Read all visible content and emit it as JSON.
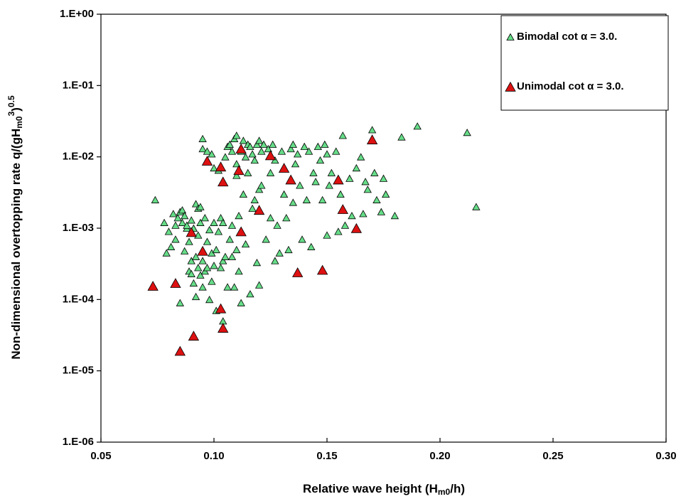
{
  "chart_data": {
    "type": "scatter",
    "xlabel": [
      "Relative wave height (H",
      "m0",
      "/h)"
    ],
    "ylabel": [
      "Non-dimensional  overtopping rate  q/(gH",
      "m0",
      "3",
      ")",
      "0.5"
    ],
    "xlim": [
      0.05,
      0.3
    ],
    "xticks": [
      0.05,
      {
        "value": 0.1,
        "label": "0.10"
      },
      0.15,
      {
        "value": 0.2,
        "label": "0.20"
      },
      0.25,
      {
        "value": 0.3,
        "label": "0.30"
      }
    ],
    "ylim": [
      1e-06,
      1
    ],
    "ylog": true,
    "yticks": [
      {
        "value": 1e-06,
        "label": "1.E-06"
      },
      {
        "value": 1e-05,
        "label": "1.E-05"
      },
      {
        "value": 0.0001,
        "label": "1.E-04"
      },
      {
        "value": 0.001,
        "label": "1.E-03"
      },
      {
        "value": 0.01,
        "label": "1.E-02"
      },
      {
        "value": 0.1,
        "label": "1.E-01"
      },
      {
        "value": 1,
        "label": "1.E+00"
      }
    ],
    "legend": "top-right",
    "series": [
      {
        "name": "Bimodal cot α = 3.0.",
        "color": "#66dd88",
        "size": 10,
        "x": [
          0.074,
          0.078,
          0.079,
          0.08,
          0.081,
          0.082,
          0.083,
          0.083,
          0.084,
          0.085,
          0.085,
          0.086,
          0.086,
          0.087,
          0.087,
          0.088,
          0.088,
          0.089,
          0.089,
          0.09,
          0.09,
          0.09,
          0.091,
          0.091,
          0.092,
          0.092,
          0.092,
          0.093,
          0.093,
          0.093,
          0.094,
          0.094,
          0.094,
          0.095,
          0.095,
          0.095,
          0.095,
          0.096,
          0.096,
          0.097,
          0.097,
          0.097,
          0.098,
          0.098,
          0.099,
          0.099,
          0.099,
          0.1,
          0.1,
          0.1,
          0.101,
          0.101,
          0.102,
          0.102,
          0.103,
          0.103,
          0.104,
          0.104,
          0.104,
          0.105,
          0.105,
          0.106,
          0.106,
          0.107,
          0.107,
          0.108,
          0.108,
          0.108,
          0.109,
          0.109,
          0.11,
          0.11,
          0.11,
          0.11,
          0.111,
          0.111,
          0.112,
          0.112,
          0.113,
          0.113,
          0.114,
          0.114,
          0.115,
          0.115,
          0.116,
          0.116,
          0.117,
          0.117,
          0.118,
          0.118,
          0.119,
          0.119,
          0.12,
          0.12,
          0.12,
          0.121,
          0.121,
          0.122,
          0.123,
          0.124,
          0.125,
          0.125,
          0.126,
          0.127,
          0.127,
          0.128,
          0.129,
          0.13,
          0.131,
          0.132,
          0.133,
          0.134,
          0.135,
          0.135,
          0.136,
          0.137,
          0.138,
          0.139,
          0.14,
          0.141,
          0.142,
          0.143,
          0.144,
          0.145,
          0.146,
          0.147,
          0.148,
          0.149,
          0.15,
          0.15,
          0.151,
          0.152,
          0.154,
          0.155,
          0.156,
          0.157,
          0.158,
          0.16,
          0.161,
          0.163,
          0.165,
          0.166,
          0.167,
          0.168,
          0.17,
          0.171,
          0.172,
          0.174,
          0.175,
          0.176,
          0.18,
          0.183,
          0.19,
          0.212,
          0.216
        ],
        "values": [
          0.0025,
          0.0012,
          0.00045,
          0.0009,
          0.00055,
          0.0016,
          0.0011,
          0.0007,
          0.0014,
          0.0017,
          9e-05,
          0.0018,
          0.0012,
          0.0015,
          0.00048,
          0.001,
          0.0011,
          0.00025,
          0.00065,
          0.00023,
          0.0013,
          0.00035,
          0.001,
          0.00017,
          0.0022,
          0.0004,
          0.00011,
          0.0019,
          0.0008,
          0.00028,
          0.00022,
          0.0012,
          0.002,
          0.018,
          0.013,
          0.00035,
          0.00015,
          0.00025,
          0.0014,
          0.012,
          0.00065,
          0.00028,
          0.00095,
          0.0001,
          0.011,
          0.00045,
          0.00018,
          0.0003,
          0.007,
          0.0012,
          7e-05,
          0.0005,
          0.0009,
          0.0065,
          0.00028,
          0.0014,
          0.00035,
          0.0012,
          5e-05,
          0.0004,
          0.01,
          0.00015,
          0.014,
          0.015,
          0.0007,
          0.012,
          0.0011,
          0.0004,
          0.018,
          0.00015,
          0.02,
          0.008,
          0.0005,
          0.0055,
          0.0015,
          0.00025,
          0.012,
          9e-05,
          0.017,
          0.003,
          0.01,
          0.0006,
          0.015,
          0.006,
          0.00012,
          0.014,
          0.0019,
          0.011,
          0.009,
          0.0025,
          0.015,
          0.00033,
          0.017,
          0.0035,
          0.00016,
          0.012,
          0.004,
          0.015,
          0.0007,
          0.013,
          0.0014,
          0.006,
          0.015,
          0.00035,
          0.009,
          0.0011,
          0.00045,
          0.012,
          0.003,
          0.0014,
          0.0005,
          0.013,
          0.015,
          0.0023,
          0.008,
          0.011,
          0.004,
          0.0007,
          0.014,
          0.0025,
          0.012,
          0.00055,
          0.006,
          0.0045,
          0.014,
          0.009,
          0.0025,
          0.015,
          0.0008,
          0.011,
          0.004,
          0.006,
          0.012,
          0.0009,
          0.003,
          0.02,
          0.0011,
          0.005,
          0.0015,
          0.007,
          0.01,
          0.0016,
          0.0045,
          0.0035,
          0.024,
          0.006,
          0.0025,
          0.0017,
          0.005,
          0.003,
          0.0015,
          0.019,
          0.027,
          0.022,
          0.002
        ]
      },
      {
        "name": "Unimodal cot α = 3.0.",
        "color": "#dd1111",
        "size": 14,
        "x": [
          0.073,
          0.083,
          0.085,
          0.09,
          0.091,
          0.095,
          0.097,
          0.103,
          0.104,
          0.103,
          0.104,
          0.111,
          0.112,
          0.112,
          0.12,
          0.125,
          0.131,
          0.134,
          0.137,
          0.148,
          0.155,
          0.157,
          0.163,
          0.17
        ],
        "values": [
          0.000155,
          0.00017,
          1.9e-05,
          0.00088,
          3.1e-05,
          0.00048,
          0.0088,
          0.0073,
          0.0045,
          7.5e-05,
          4e-05,
          0.0065,
          0.013,
          0.0009,
          0.0018,
          0.0105,
          0.007,
          0.0048,
          0.00024,
          0.00026,
          0.0048,
          0.00185,
          0.001,
          0.0175
        ]
      }
    ]
  }
}
